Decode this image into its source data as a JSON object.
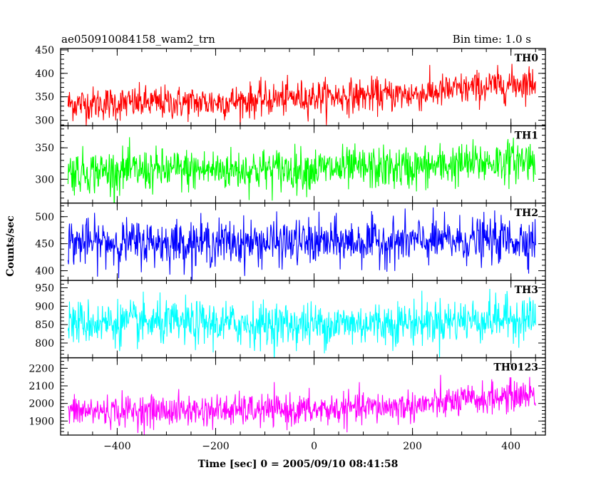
{
  "chart_data": {
    "type": "line",
    "title": "ae050910084158_wam2_trn",
    "bin_time": "Bin time: 1.0 s",
    "xlabel": "Time [sec] 0 = 2005/09/10 08:41:58",
    "ylabel": "Counts/sec",
    "xlim": [
      -515,
      470
    ],
    "x_ticks": [
      -400,
      -200,
      0,
      200,
      400
    ],
    "x_sampling": {
      "start": -500,
      "end": 450,
      "step": 1
    },
    "panels": [
      {
        "name": "TH0",
        "color": "#ff0000",
        "ylim": [
          288,
          453
        ],
        "y_ticks": [
          300,
          350,
          400,
          450
        ],
        "trend": [
          [
            -500,
            335
          ],
          [
            -200,
            338
          ],
          [
            0,
            350
          ],
          [
            200,
            355
          ],
          [
            450,
            382
          ]
        ],
        "noise_sd": 18
      },
      {
        "name": "TH1",
        "color": "#00ff00",
        "ylim": [
          262,
          385
        ],
        "y_ticks": [
          300,
          350
        ],
        "trend": [
          [
            -500,
            312
          ],
          [
            -200,
            315
          ],
          [
            0,
            316
          ],
          [
            200,
            318
          ],
          [
            450,
            332
          ]
        ],
        "noise_sd": 17
      },
      {
        "name": "TH2",
        "color": "#0000ff",
        "ylim": [
          382,
          525
        ],
        "y_ticks": [
          400,
          450,
          500
        ],
        "trend": [
          [
            -500,
            452
          ],
          [
            -200,
            452
          ],
          [
            0,
            452
          ],
          [
            200,
            454
          ],
          [
            450,
            458
          ]
        ],
        "noise_sd": 21
      },
      {
        "name": "TH3",
        "color": "#00ffff",
        "ylim": [
          760,
          970
        ],
        "y_ticks": [
          800,
          850,
          900,
          950
        ],
        "trend": [
          [
            -500,
            856
          ],
          [
            -200,
            852
          ],
          [
            0,
            850
          ],
          [
            200,
            856
          ],
          [
            450,
            870
          ]
        ],
        "noise_sd": 30
      },
      {
        "name": "TH0123",
        "color": "#ff00ff",
        "ylim": [
          1820,
          2260
        ],
        "y_ticks": [
          1900,
          2000,
          2100,
          2200
        ],
        "trend": [
          [
            -500,
            1955
          ],
          [
            -200,
            1960
          ],
          [
            0,
            1962
          ],
          [
            200,
            1985
          ],
          [
            450,
            2055
          ]
        ],
        "noise_sd": 45
      }
    ]
  }
}
